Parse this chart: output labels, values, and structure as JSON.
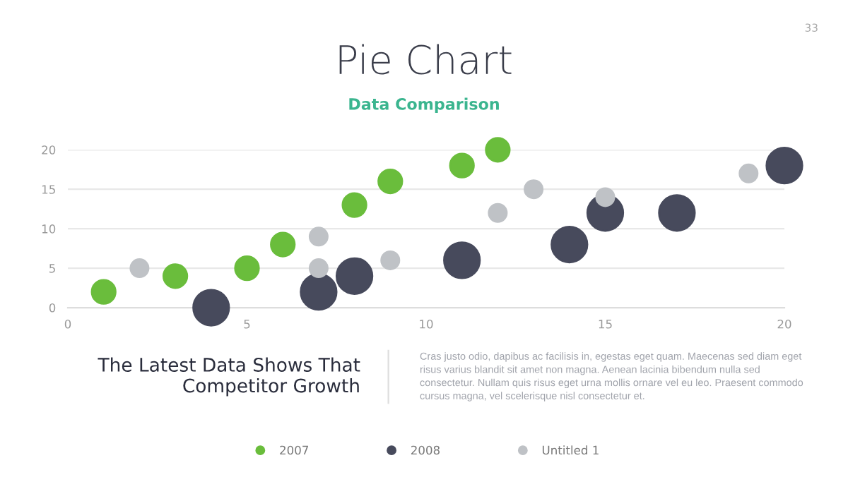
{
  "chart_data": {
    "type": "bubble",
    "title": "Pie Chart",
    "subtitle": "Data Comparison",
    "xlim": [
      0,
      20
    ],
    "ylim": [
      0,
      20
    ],
    "xticks": [
      0,
      5,
      10,
      15,
      20
    ],
    "yticks": [
      0,
      5,
      10,
      15,
      20
    ],
    "grid": "y",
    "legend": "bottom",
    "series": [
      {
        "name": "2007",
        "color": "#6abd3c",
        "x": [
          1,
          3,
          5,
          6,
          8,
          9,
          11,
          12
        ],
        "values": [
          2,
          4,
          5,
          8,
          13,
          16,
          18,
          20
        ],
        "sizes": [
          0.44,
          0.44,
          0.44,
          0.44,
          0.44,
          0.44,
          0.44,
          0.44
        ]
      },
      {
        "name": "2008",
        "color": "#474a5c",
        "x": [
          4,
          7,
          8,
          11,
          14,
          15,
          17,
          20
        ],
        "values": [
          0,
          2,
          4,
          6,
          8,
          12,
          12,
          18
        ],
        "sizes": [
          1,
          1,
          1,
          1,
          1,
          1,
          1,
          1
        ]
      },
      {
        "name": "Untitled 1",
        "color": "#bfc2c6",
        "x": [
          2,
          7,
          7,
          9,
          12,
          13,
          15,
          19
        ],
        "values": [
          5,
          9,
          5,
          6,
          12,
          15,
          14,
          17
        ],
        "sizes": [
          0.25,
          0.25,
          0.25,
          0.25,
          0.25,
          0.25,
          0.25,
          0.25
        ]
      }
    ],
    "annotations": [
      "33",
      "The Latest Data Shows That\nCompetitor Growth",
      "Cras justo odio, dapibus ac facilisis in, egestas eget quam. Maecenas sed diam eget\nrisus varius blandit sit amet non magna. Aenean lacinia bibendum nulla sed\nconsectetur. Nullam quis risus eget urna mollis ornare vel eu leo. Praesent commodo\ncursus magna, vel scelerisque nisl consectetur et."
    ]
  }
}
